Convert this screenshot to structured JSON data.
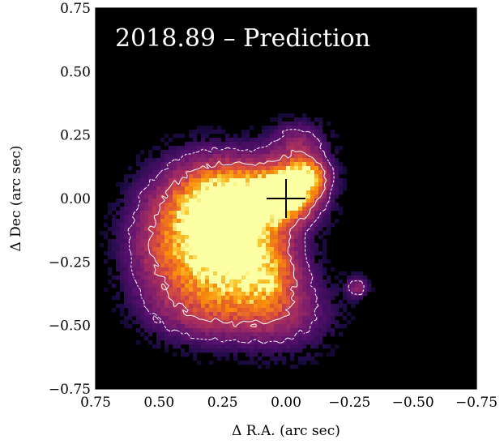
{
  "chart_data": {
    "type": "heatmap",
    "title": "2018.89 – Prediction",
    "xlabel": "Δ R.A. (arc sec)",
    "ylabel": "Δ Dec (arc sec)",
    "xlim": [
      0.75,
      -0.75
    ],
    "ylim": [
      -0.75,
      0.75
    ],
    "x_ticks": [
      0.75,
      0.5,
      0.25,
      0.0,
      -0.25,
      -0.5,
      -0.75
    ],
    "x_tick_labels": [
      "0.75",
      "0.50",
      "0.25",
      "0.00",
      "−0.25",
      "−0.50",
      "−0.75"
    ],
    "y_ticks": [
      0.75,
      0.5,
      0.25,
      0.0,
      -0.25,
      -0.5,
      -0.75
    ],
    "y_tick_labels": [
      "0.75",
      "0.50",
      "0.25",
      "0.00",
      "−0.25",
      "−0.50",
      "−0.75"
    ],
    "background_color": "#000000",
    "colormap": "inferno",
    "marker": {
      "shape": "cross",
      "x": 0.0,
      "y": 0.0,
      "color": "#000000"
    },
    "contour_color": "#ffffff",
    "emission_blobs": [
      {
        "x": 0.0,
        "y": 0.02,
        "sx": 0.08,
        "sy": 0.07,
        "amp": 1.0
      },
      {
        "x": -0.08,
        "y": 0.09,
        "sx": 0.06,
        "sy": 0.05,
        "amp": 0.8
      },
      {
        "x": 0.15,
        "y": 0.0,
        "sx": 0.15,
        "sy": 0.1,
        "amp": 0.85
      },
      {
        "x": 0.3,
        "y": -0.05,
        "sx": 0.13,
        "sy": 0.14,
        "amp": 0.7
      },
      {
        "x": 0.2,
        "y": -0.22,
        "sx": 0.13,
        "sy": 0.12,
        "amp": 0.72
      },
      {
        "x": 0.07,
        "y": -0.3,
        "sx": 0.09,
        "sy": 0.1,
        "amp": 0.5
      },
      {
        "x": 0.35,
        "y": -0.3,
        "sx": 0.15,
        "sy": 0.15,
        "amp": 0.45
      },
      {
        "x": 0.22,
        "y": -0.45,
        "sx": 0.18,
        "sy": 0.08,
        "amp": 0.3
      },
      {
        "x": 0.0,
        "y": -0.45,
        "sx": 0.14,
        "sy": 0.12,
        "amp": 0.25
      },
      {
        "x": -0.05,
        "y": 0.22,
        "sx": 0.08,
        "sy": 0.06,
        "amp": 0.35
      },
      {
        "x": -0.28,
        "y": -0.35,
        "sx": 0.03,
        "sy": 0.03,
        "amp": 0.35
      },
      {
        "x": 0.48,
        "y": -0.15,
        "sx": 0.12,
        "sy": 0.16,
        "amp": 0.3
      }
    ],
    "contour_levels": [
      0.25,
      0.55
    ]
  }
}
